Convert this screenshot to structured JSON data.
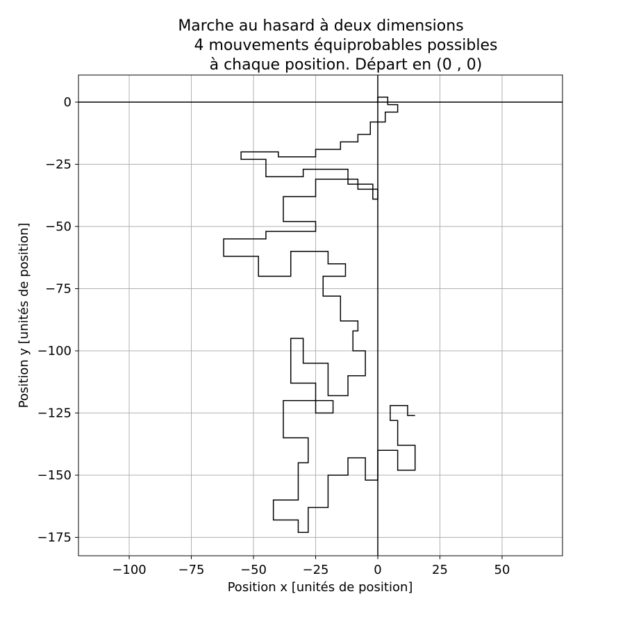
{
  "chart_data": {
    "type": "line",
    "title": [
      "Marche au hasard à deux dimensions",
      "4 mouvements équiprobables possibles",
      "à chaque position. Départ en (0 , 0)"
    ],
    "xlabel": "Position x [unités de position]",
    "ylabel": "Position y [unités de position]",
    "xlim": [
      -120.4,
      74.3
    ],
    "ylim": [
      -182.4,
      10.9
    ],
    "xticks": [
      {
        "value": -100,
        "label": "−100"
      },
      {
        "value": -75,
        "label": "−75"
      },
      {
        "value": -50,
        "label": "−50"
      },
      {
        "value": -25,
        "label": "−25"
      },
      0,
      25,
      50
    ],
    "yticks": [
      0,
      {
        "value": -25,
        "label": "−25"
      },
      {
        "value": -50,
        "label": "−50"
      },
      {
        "value": -75,
        "label": "−75"
      },
      {
        "value": -100,
        "label": "−100"
      },
      {
        "value": -125,
        "label": "−125"
      },
      {
        "value": -150,
        "label": "−150"
      },
      {
        "value": -175,
        "label": "−175"
      }
    ],
    "grid": true,
    "hlines": [
      0
    ],
    "vlines": [
      0
    ],
    "series": [
      {
        "color": "#000000",
        "x": [
          0,
          0,
          4,
          4,
          8,
          8,
          3,
          3,
          -3,
          -3,
          -8,
          -8,
          -15,
          -15,
          -25,
          -25,
          -40,
          -40,
          -55,
          -55,
          -45,
          -45,
          -30,
          -30,
          -12,
          -12,
          -2,
          -2,
          0,
          0,
          -8,
          -8,
          -25,
          -25,
          -38,
          -38,
          -25,
          -25,
          -45,
          -45,
          -62,
          -62,
          -48,
          -48,
          -35,
          -35,
          -20,
          -20,
          -13,
          -13,
          -22,
          -22,
          -15,
          -15,
          -8,
          -8,
          -10,
          -10,
          -5,
          -5,
          -12,
          -12,
          -20,
          -20,
          -30,
          -30,
          -35,
          -35,
          -25,
          -25,
          -18,
          -18,
          -38,
          -38,
          -28,
          -28,
          -32,
          -32,
          -42,
          -42,
          -32,
          -32,
          -28,
          -28,
          -20,
          -20,
          -12,
          -12,
          -5,
          -5,
          0,
          0,
          8,
          8,
          15,
          15,
          8,
          8,
          5,
          5,
          12,
          12,
          15
        ],
        "y": [
          0,
          2,
          2,
          -1,
          -1,
          -4,
          -4,
          -8,
          -8,
          -13,
          -13,
          -16,
          -16,
          -19,
          -19,
          -22,
          -22,
          -20,
          -20,
          -23,
          -23,
          -30,
          -30,
          -27,
          -27,
          -33,
          -33,
          -39,
          -39,
          -35,
          -35,
          -31,
          -31,
          -38,
          -38,
          -48,
          -48,
          -52,
          -52,
          -55,
          -55,
          -62,
          -62,
          -70,
          -70,
          -60,
          -60,
          -65,
          -65,
          -70,
          -70,
          -78,
          -78,
          -88,
          -88,
          -92,
          -92,
          -100,
          -100,
          -110,
          -110,
          -118,
          -118,
          -105,
          -105,
          -95,
          -95,
          -113,
          -113,
          -125,
          -125,
          -120,
          -120,
          -135,
          -135,
          -145,
          -145,
          -160,
          -160,
          -168,
          -168,
          -173,
          -173,
          -163,
          -163,
          -150,
          -150,
          -143,
          -143,
          -152,
          -152,
          -140,
          -140,
          -148,
          -148,
          -138,
          -138,
          -128,
          -128,
          -122,
          -122,
          -126,
          -126
        ]
      }
    ]
  }
}
